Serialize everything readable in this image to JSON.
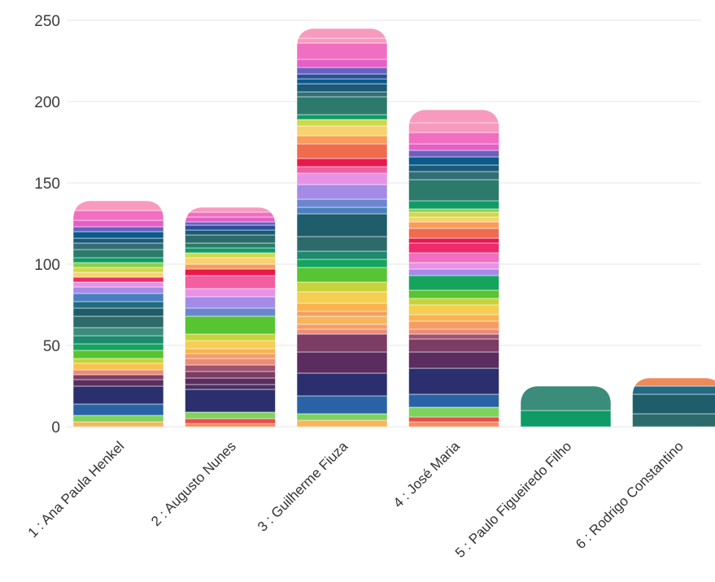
{
  "chart_data": {
    "type": "bar",
    "stacked": true,
    "title": "",
    "xlabel": "",
    "ylabel": "",
    "ylim": [
      0,
      250
    ],
    "yticks": [
      0,
      50,
      100,
      150,
      200,
      250
    ],
    "grid": true,
    "legend": "none",
    "categories": [
      "1 : Ana Paula Henkel",
      "2 : Augusto Nunes",
      "3 : Guilherme Fiuza",
      "4 : José Maria",
      "5 : Paulo Figueiredo Filho",
      "6 : Rodrigo Constantino"
    ],
    "segments": [
      [
        {
          "v": 3,
          "c": "#f7b65b"
        },
        {
          "v": 4,
          "c": "#7ed35f"
        },
        {
          "v": 7,
          "c": "#2a63a5"
        },
        {
          "v": 11,
          "c": "#2b2f6e"
        },
        {
          "v": 4,
          "c": "#5b2c5e"
        },
        {
          "v": 3,
          "c": "#7b3d63"
        },
        {
          "v": 3,
          "c": "#ef8a78"
        },
        {
          "v": 4,
          "c": "#f9c24f"
        },
        {
          "v": 3,
          "c": "#c6d43a"
        },
        {
          "v": 5,
          "c": "#57c431"
        },
        {
          "v": 4,
          "c": "#15a45e"
        },
        {
          "v": 5,
          "c": "#1d8a6e"
        },
        {
          "v": 5,
          "c": "#3b8c7a"
        },
        {
          "v": 7,
          "c": "#2d6b6a"
        },
        {
          "v": 5,
          "c": "#1f5d6b"
        },
        {
          "v": 4,
          "c": "#226b83"
        },
        {
          "v": 5,
          "c": "#4a7fc0"
        },
        {
          "v": 4,
          "c": "#a48be6"
        },
        {
          "v": 3,
          "c": "#e792e6"
        },
        {
          "v": 3,
          "c": "#ee2a6b"
        },
        {
          "v": 3,
          "c": "#f6d36f"
        },
        {
          "v": 3,
          "c": "#cfd94a"
        },
        {
          "v": 3,
          "c": "#8ccf4f"
        },
        {
          "v": 3,
          "c": "#0e9b65"
        },
        {
          "v": 5,
          "c": "#2b7a6c"
        },
        {
          "v": 4,
          "c": "#326f74"
        },
        {
          "v": 3,
          "c": "#1a5a78"
        },
        {
          "v": 4,
          "c": "#0a5a8a"
        },
        {
          "v": 3,
          "c": "#6b5fc1"
        },
        {
          "v": 4,
          "c": "#e45fc6"
        },
        {
          "v": 6,
          "c": "#f06fc0"
        },
        {
          "v": 6,
          "c": "#f79abe"
        }
      ],
      [
        {
          "v": 2,
          "c": "#ff8a5b"
        },
        {
          "v": 3,
          "c": "#ef4b4b"
        },
        {
          "v": 4,
          "c": "#7ed35f"
        },
        {
          "v": 14,
          "c": "#2b2f6e"
        },
        {
          "v": 3,
          "c": "#4a2e62"
        },
        {
          "v": 4,
          "c": "#5b2c5e"
        },
        {
          "v": 4,
          "c": "#7b3d63"
        },
        {
          "v": 4,
          "c": "#a0536d"
        },
        {
          "v": 4,
          "c": "#ef8a78"
        },
        {
          "v": 3,
          "c": "#f59d66"
        },
        {
          "v": 3,
          "c": "#f9b44f"
        },
        {
          "v": 5,
          "c": "#f5cf52"
        },
        {
          "v": 4,
          "c": "#c6d43a"
        },
        {
          "v": 11,
          "c": "#57c431"
        },
        {
          "v": 5,
          "c": "#6b86d0"
        },
        {
          "v": 7,
          "c": "#a48be6"
        },
        {
          "v": 5,
          "c": "#e792e6"
        },
        {
          "v": 8,
          "c": "#f25ea0"
        },
        {
          "v": 4,
          "c": "#e8184d"
        },
        {
          "v": 3,
          "c": "#f99d5b"
        },
        {
          "v": 4,
          "c": "#f6d36f"
        },
        {
          "v": 3,
          "c": "#cfd94a"
        },
        {
          "v": 3,
          "c": "#0e9b65"
        },
        {
          "v": 3,
          "c": "#2b7a6c"
        },
        {
          "v": 5,
          "c": "#2d6b6a"
        },
        {
          "v": 3,
          "c": "#1a5a78"
        },
        {
          "v": 3,
          "c": "#2a4f9a"
        },
        {
          "v": 2,
          "c": "#6b5fc1"
        },
        {
          "v": 3,
          "c": "#e45fc6"
        },
        {
          "v": 3,
          "c": "#f06fc0"
        },
        {
          "v": 3,
          "c": "#f79abe"
        }
      ],
      [
        {
          "v": 4,
          "c": "#f7b65b"
        },
        {
          "v": 4,
          "c": "#7ed35f"
        },
        {
          "v": 11,
          "c": "#2a63a5"
        },
        {
          "v": 14,
          "c": "#2b2f6e"
        },
        {
          "v": 13,
          "c": "#5b2c5e"
        },
        {
          "v": 11,
          "c": "#7b3d63"
        },
        {
          "v": 3,
          "c": "#ef8a78"
        },
        {
          "v": 3,
          "c": "#f59d66"
        },
        {
          "v": 5,
          "c": "#f7b65b"
        },
        {
          "v": 3,
          "c": "#f59d66"
        },
        {
          "v": 5,
          "c": "#f9b44f"
        },
        {
          "v": 7,
          "c": "#f5cf52"
        },
        {
          "v": 6,
          "c": "#c6d43a"
        },
        {
          "v": 9,
          "c": "#57c431"
        },
        {
          "v": 5,
          "c": "#15a45e"
        },
        {
          "v": 5,
          "c": "#1d8a6e"
        },
        {
          "v": 9,
          "c": "#2d6b6a"
        },
        {
          "v": 14,
          "c": "#1f5d6b"
        },
        {
          "v": 4,
          "c": "#4a7fc0"
        },
        {
          "v": 5,
          "c": "#6b86d0"
        },
        {
          "v": 9,
          "c": "#a48be6"
        },
        {
          "v": 7,
          "c": "#e792e6"
        },
        {
          "v": 4,
          "c": "#f25ea0"
        },
        {
          "v": 5,
          "c": "#e8184d"
        },
        {
          "v": 9,
          "c": "#ef6c4f"
        },
        {
          "v": 5,
          "c": "#f99d5b"
        },
        {
          "v": 6,
          "c": "#f6d36f"
        },
        {
          "v": 4,
          "c": "#cfd94a"
        },
        {
          "v": 3,
          "c": "#0e9b65"
        },
        {
          "v": 11,
          "c": "#2b7a6c"
        },
        {
          "v": 3,
          "c": "#326f74"
        },
        {
          "v": 5,
          "c": "#1a5a78"
        },
        {
          "v": 3,
          "c": "#0a5a8a"
        },
        {
          "v": 3,
          "c": "#2a4f9a"
        },
        {
          "v": 4,
          "c": "#6b5fc1"
        },
        {
          "v": 5,
          "c": "#e45fc6"
        },
        {
          "v": 10,
          "c": "#f06fc0"
        },
        {
          "v": 3,
          "c": "#f79abe"
        },
        {
          "v": 6,
          "c": "#f79abe"
        }
      ],
      [
        {
          "v": 3,
          "c": "#ff8a5b"
        },
        {
          "v": 3,
          "c": "#ef4b4b"
        },
        {
          "v": 6,
          "c": "#7ed35f"
        },
        {
          "v": 8,
          "c": "#2a63a5"
        },
        {
          "v": 16,
          "c": "#2b2f6e"
        },
        {
          "v": 10,
          "c": "#5b2c5e"
        },
        {
          "v": 8,
          "c": "#7b3d63"
        },
        {
          "v": 3,
          "c": "#a0536d"
        },
        {
          "v": 3,
          "c": "#ef8a78"
        },
        {
          "v": 5,
          "c": "#f59d66"
        },
        {
          "v": 4,
          "c": "#f9b44f"
        },
        {
          "v": 6,
          "c": "#f5cf52"
        },
        {
          "v": 4,
          "c": "#c6d43a"
        },
        {
          "v": 5,
          "c": "#57c431"
        },
        {
          "v": 9,
          "c": "#15a45e"
        },
        {
          "v": 4,
          "c": "#a48be6"
        },
        {
          "v": 4,
          "c": "#e792e6"
        },
        {
          "v": 6,
          "c": "#f06fc0"
        },
        {
          "v": 6,
          "c": "#ee2a6b"
        },
        {
          "v": 3,
          "c": "#e8184d"
        },
        {
          "v": 6,
          "c": "#ef6c4f"
        },
        {
          "v": 4,
          "c": "#f99d5b"
        },
        {
          "v": 3,
          "c": "#f6d36f"
        },
        {
          "v": 3,
          "c": "#cfd94a"
        },
        {
          "v": 2,
          "c": "#8ccf4f"
        },
        {
          "v": 5,
          "c": "#0e9b65"
        },
        {
          "v": 13,
          "c": "#2b7a6c"
        },
        {
          "v": 5,
          "c": "#326f74"
        },
        {
          "v": 4,
          "c": "#1a5a78"
        },
        {
          "v": 5,
          "c": "#0a5a8a"
        },
        {
          "v": 4,
          "c": "#6b5fc1"
        },
        {
          "v": 4,
          "c": "#e45fc6"
        },
        {
          "v": 7,
          "c": "#f06fc0"
        },
        {
          "v": 6,
          "c": "#f79abe"
        },
        {
          "v": 8,
          "c": "#f79abe"
        }
      ],
      [
        {
          "v": 10,
          "c": "#0e9b65"
        },
        {
          "v": 15,
          "c": "#3b8c7a"
        }
      ],
      [
        {
          "v": 8,
          "c": "#2d6b6a"
        },
        {
          "v": 12,
          "c": "#1f5d6b"
        },
        {
          "v": 5,
          "c": "#226b83"
        },
        {
          "v": 5,
          "c": "#ef8a5b"
        }
      ]
    ]
  }
}
